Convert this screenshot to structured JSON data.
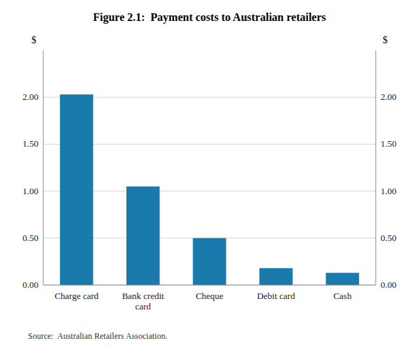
{
  "chart_data": {
    "type": "bar",
    "title": "Figure 2.1:  Payment costs to Australian retailers",
    "categories": [
      "Charge card",
      "Bank credit\ncard",
      "Cheque",
      "Debit card",
      "Cash"
    ],
    "values": [
      2.03,
      1.05,
      0.5,
      0.18,
      0.13
    ],
    "color": "#1a7aab",
    "ylim": [
      0.0,
      2.5
    ],
    "yticks": [
      {
        "value": 0.0,
        "label": "0.00"
      },
      {
        "value": 0.5,
        "label": "0.50"
      },
      {
        "value": 1.0,
        "label": "1.00"
      },
      {
        "value": 1.5,
        "label": "1.50"
      },
      {
        "value": 2.0,
        "label": "2.00"
      }
    ],
    "y2lim": [
      0.0,
      2.5
    ],
    "y2ticks": [
      {
        "value": 0.0,
        "label": "0.00"
      },
      {
        "value": 0.5,
        "label": "0.50"
      },
      {
        "value": 1.0,
        "label": "1.00"
      },
      {
        "value": 1.5,
        "label": "1.50"
      },
      {
        "value": 2.0,
        "label": "2.00"
      }
    ],
    "ylabel": "$",
    "y2label": "$",
    "source": "Source:  Australian Retailers Association.",
    "grid": true
  }
}
